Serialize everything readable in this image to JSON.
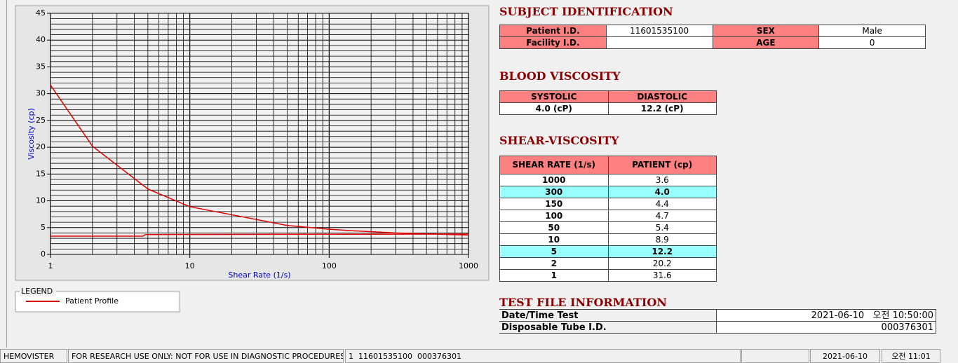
{
  "chart_data": {
    "type": "line",
    "xlabel": "Shear Rate (1/s)",
    "ylabel": "Viscosity (cp)",
    "x_log": true,
    "xlim": [
      1,
      1000
    ],
    "xticks": [
      1,
      10,
      100,
      1000
    ],
    "x_minor_ticks": [
      2,
      3,
      4,
      5,
      6,
      7,
      8,
      9,
      20,
      30,
      40,
      50,
      60,
      70,
      80,
      90,
      200,
      300,
      400,
      500,
      600,
      700,
      800,
      900
    ],
    "ylim": [
      0,
      45
    ],
    "yticks": [
      0,
      5,
      10,
      15,
      20,
      25,
      30,
      35,
      40,
      45
    ],
    "y_minor_ticks": [
      1,
      2,
      3,
      4,
      6,
      7,
      8,
      9,
      11,
      12,
      13,
      14,
      16,
      17,
      18,
      19,
      21,
      22,
      23,
      24,
      26,
      27,
      28,
      29,
      31,
      32,
      33,
      34,
      36,
      37,
      38,
      39,
      41,
      42,
      43,
      44
    ],
    "grid": true,
    "legend_title": "LEGEND",
    "series": [
      {
        "name": "Patient Profile",
        "color": "#e00000",
        "x": [
          1,
          2,
          5,
          10,
          50,
          100,
          150,
          300,
          1000
        ],
        "values": [
          31.6,
          20.2,
          12.2,
          8.9,
          5.4,
          4.7,
          4.4,
          4.0,
          3.6
        ]
      },
      {
        "color": "#e00000",
        "x": [
          1,
          4.6,
          4.8,
          1000
        ],
        "values": [
          3.4,
          3.4,
          3.7,
          3.8
        ]
      }
    ]
  },
  "subject": {
    "title": "SUBJECT IDENTIFICATION",
    "patient_id": {
      "label": "Patient I.D.",
      "value": "11601535100"
    },
    "sex": {
      "label": "SEX",
      "value": "Male"
    },
    "facility_id": {
      "label": "Facility I.D."
    },
    "age": {
      "label": "AGE",
      "value": "0"
    }
  },
  "blood_viscosity": {
    "title": "BLOOD VISCOSITY",
    "systolic": {
      "label": "SYSTOLIC",
      "value": "4.0 (cP)"
    },
    "diastolic": {
      "label": "DIASTOLIC",
      "value": "12.2 (cP)"
    }
  },
  "shear_viscosity": {
    "title": "SHEAR-VISCOSITY",
    "headers": [
      "SHEAR RATE (1/s)",
      "PATIENT (cp)"
    ],
    "rows": [
      [
        "1000",
        "3.6"
      ],
      [
        "300",
        "4.0"
      ],
      [
        "150",
        "4.4"
      ],
      [
        "100",
        "4.7"
      ],
      [
        "50",
        "5.4"
      ],
      [
        "10",
        "8.9"
      ],
      [
        "5",
        "12.2"
      ],
      [
        "2",
        "20.2"
      ],
      [
        "1",
        "31.6"
      ]
    ],
    "highlighted_rows": [
      1,
      6
    ]
  },
  "test_file": {
    "title": "TEST FILE INFORMATION",
    "rows": [
      [
        "Date/Time Test",
        "2021-06-10   오전 10:50:00"
      ],
      [
        "Disposable Tube I.D.",
        "000376301"
      ]
    ]
  },
  "status_bar": [
    "HEMOVISTER",
    "FOR RESEARCH USE ONLY: NOT FOR USE IN DIAGNOSTIC PROCEDURES",
    "1  11601535100  000376301",
    "2021-06-10",
    "오전 11:01"
  ]
}
